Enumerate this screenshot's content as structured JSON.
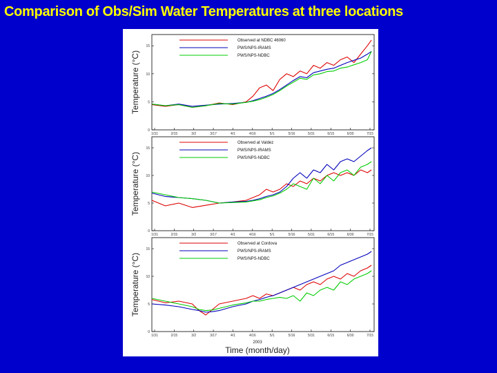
{
  "slide": {
    "title": "Comparison of Obs/Sim Water Temperatures at three locations"
  },
  "colors": {
    "background": "#0000cc",
    "title": "#ffff00",
    "observed": "#dd0000",
    "rams": "#0000bb",
    "ndbc": "#00cc00"
  },
  "chart_data": [
    {
      "type": "line",
      "ylabel": "Temperature (°C)",
      "xlabel": "",
      "x_ticks": [
        "1/31",
        "2/15",
        "3/2",
        "3/17",
        "4/1",
        "4/16",
        "5/1",
        "5/16",
        "5/31",
        "6/15",
        "6/30",
        "7/15"
      ],
      "y_ticks": [
        "0",
        "5",
        "10",
        "15"
      ],
      "ylim": [
        0,
        17
      ],
      "x_day_range": [
        0,
        165
      ],
      "legend_placement": "top",
      "series": [
        {
          "name": "Observed at NDBC 46060",
          "color": "observed",
          "x": [
            0,
            10,
            20,
            30,
            40,
            50,
            60,
            70,
            75,
            80,
            85,
            90,
            95,
            100,
            105,
            110,
            115,
            120,
            125,
            130,
            135,
            140,
            145,
            150,
            155,
            160,
            163
          ],
          "y": [
            4.5,
            4.2,
            4.5,
            4.0,
            4.3,
            4.8,
            4.5,
            5.0,
            6.0,
            7.5,
            8.0,
            7.0,
            9.0,
            10.0,
            9.5,
            10.5,
            10.0,
            11.5,
            11.0,
            12.0,
            11.5,
            12.5,
            13.0,
            12.0,
            13.5,
            15.0,
            16.0
          ]
        },
        {
          "name": "PWS/NPS-IRAMS",
          "color": "rams",
          "x": [
            0,
            10,
            20,
            30,
            40,
            50,
            60,
            70,
            75,
            80,
            85,
            90,
            95,
            100,
            105,
            110,
            115,
            120,
            125,
            130,
            135,
            140,
            145,
            150,
            155,
            160,
            163
          ],
          "y": [
            4.6,
            4.3,
            4.6,
            4.2,
            4.4,
            4.6,
            4.7,
            4.9,
            5.2,
            5.6,
            6.0,
            6.5,
            7.2,
            8.0,
            8.8,
            9.5,
            9.3,
            10.2,
            10.5,
            10.8,
            11.0,
            11.5,
            12.0,
            12.4,
            12.8,
            13.5,
            14.0
          ]
        },
        {
          "name": "PWS/NPS-NDBC",
          "color": "ndbc",
          "x": [
            0,
            10,
            20,
            30,
            40,
            50,
            60,
            70,
            75,
            80,
            85,
            90,
            95,
            100,
            105,
            110,
            115,
            120,
            125,
            130,
            135,
            140,
            145,
            150,
            155,
            160,
            163
          ],
          "y": [
            4.6,
            4.3,
            4.5,
            4.0,
            4.3,
            4.7,
            4.6,
            4.9,
            5.1,
            5.4,
            5.8,
            6.3,
            7.0,
            7.8,
            8.5,
            9.2,
            9.0,
            9.8,
            10.0,
            10.4,
            10.5,
            11.0,
            11.2,
            11.6,
            12.0,
            12.5,
            14.0
          ]
        }
      ]
    },
    {
      "type": "line",
      "ylabel": "Temperature (°C)",
      "xlabel": "",
      "x_ticks": [
        "1/31",
        "2/15",
        "3/2",
        "3/17",
        "4/1",
        "4/16",
        "5/1",
        "5/16",
        "5/31",
        "6/15",
        "6/30",
        "7/15"
      ],
      "y_ticks": [
        "0",
        "5",
        "10",
        "15"
      ],
      "ylim": [
        0,
        17
      ],
      "x_day_range": [
        0,
        165
      ],
      "legend_placement": "top",
      "series": [
        {
          "name": "Observed at Valdez",
          "color": "observed",
          "x": [
            0,
            10,
            20,
            30,
            40,
            50,
            60,
            70,
            75,
            80,
            85,
            90,
            95,
            100,
            105,
            110,
            115,
            120,
            125,
            130,
            135,
            140,
            145,
            150,
            155,
            160,
            163
          ],
          "y": [
            5.5,
            4.5,
            5.0,
            4.2,
            4.6,
            5.0,
            5.2,
            5.5,
            6.0,
            6.5,
            7.5,
            7.0,
            7.5,
            8.5,
            8.0,
            9.0,
            8.5,
            9.5,
            9.0,
            10.0,
            10.5,
            10.0,
            10.5,
            10.0,
            11.0,
            10.5,
            11.0
          ]
        },
        {
          "name": "PWS/NPS-IRAMS",
          "color": "rams",
          "x": [
            0,
            10,
            20,
            30,
            40,
            50,
            60,
            70,
            75,
            80,
            85,
            90,
            95,
            100,
            105,
            110,
            115,
            120,
            125,
            130,
            135,
            140,
            145,
            150,
            155,
            160,
            163
          ],
          "y": [
            6.8,
            6.2,
            6.0,
            5.8,
            5.5,
            5.0,
            5.2,
            5.3,
            5.5,
            5.8,
            6.2,
            6.5,
            7.0,
            8.0,
            9.5,
            10.5,
            9.5,
            11.0,
            10.5,
            12.0,
            11.0,
            12.5,
            13.0,
            12.5,
            13.5,
            14.5,
            15.0
          ]
        },
        {
          "name": "PWS/NPS-NDBC",
          "color": "ndbc",
          "x": [
            0,
            10,
            20,
            30,
            40,
            50,
            60,
            70,
            75,
            80,
            85,
            90,
            95,
            100,
            105,
            110,
            115,
            120,
            125,
            130,
            135,
            140,
            145,
            150,
            155,
            160,
            163
          ],
          "y": [
            7.0,
            6.5,
            6.0,
            5.8,
            5.5,
            5.0,
            5.1,
            5.2,
            5.4,
            5.6,
            6.0,
            6.3,
            6.8,
            7.5,
            8.5,
            8.0,
            7.5,
            9.5,
            8.5,
            10.0,
            9.0,
            10.5,
            11.0,
            10.0,
            11.5,
            12.0,
            12.5
          ]
        }
      ]
    },
    {
      "type": "line",
      "ylabel": "Temperature (°C)",
      "xlabel": "Time (month/day)",
      "x_ticks": [
        "1/31",
        "2/15",
        "3/2",
        "3/17",
        "4/1",
        "4/16",
        "5/1",
        "5/16",
        "5/31",
        "6/15",
        "6/30",
        "7/15"
      ],
      "x_tick_annotation": "2003",
      "y_ticks": [
        "0",
        "5",
        "10",
        "15"
      ],
      "ylim": [
        0,
        17
      ],
      "x_day_range": [
        0,
        165
      ],
      "legend_placement": "top",
      "series": [
        {
          "name": "Observed at Cordova",
          "color": "observed",
          "x": [
            0,
            10,
            20,
            30,
            35,
            40,
            45,
            50,
            60,
            70,
            75,
            80,
            85,
            90,
            95,
            100,
            105,
            110,
            115,
            120,
            125,
            130,
            135,
            140,
            145,
            150,
            155,
            160,
            163
          ],
          "y": [
            5.8,
            5.2,
            5.5,
            5.0,
            3.8,
            3.0,
            4.0,
            5.0,
            5.5,
            6.0,
            6.5,
            6.0,
            6.8,
            6.5,
            7.0,
            7.5,
            8.0,
            7.5,
            8.5,
            9.0,
            8.5,
            9.5,
            10.0,
            9.5,
            10.5,
            10.0,
            11.0,
            11.5,
            12.0
          ]
        },
        {
          "name": "PWS/NPS-IRAMS",
          "color": "rams",
          "x": [
            0,
            10,
            20,
            30,
            35,
            40,
            45,
            50,
            60,
            70,
            75,
            80,
            85,
            90,
            95,
            100,
            105,
            110,
            115,
            120,
            125,
            130,
            135,
            140,
            145,
            150,
            155,
            160,
            163
          ],
          "y": [
            5.0,
            4.8,
            4.5,
            4.0,
            3.8,
            3.5,
            3.6,
            3.8,
            4.5,
            5.0,
            5.5,
            5.8,
            6.2,
            6.5,
            7.0,
            7.5,
            8.0,
            8.5,
            9.0,
            9.5,
            10.0,
            10.5,
            11.0,
            12.0,
            12.5,
            13.0,
            13.5,
            14.0,
            14.5
          ]
        },
        {
          "name": "PWS/NPS-NDBC",
          "color": "ndbc",
          "x": [
            0,
            10,
            20,
            30,
            35,
            40,
            45,
            50,
            60,
            70,
            75,
            80,
            85,
            90,
            95,
            100,
            105,
            110,
            115,
            120,
            125,
            130,
            135,
            140,
            145,
            150,
            155,
            160,
            163
          ],
          "y": [
            6.0,
            5.5,
            5.0,
            4.5,
            4.0,
            3.8,
            3.9,
            4.2,
            4.8,
            5.2,
            5.5,
            5.5,
            5.8,
            6.0,
            6.2,
            6.0,
            6.5,
            5.5,
            7.0,
            6.5,
            7.5,
            8.0,
            7.5,
            9.0,
            8.5,
            9.5,
            10.0,
            10.5,
            11.0
          ]
        }
      ]
    }
  ]
}
